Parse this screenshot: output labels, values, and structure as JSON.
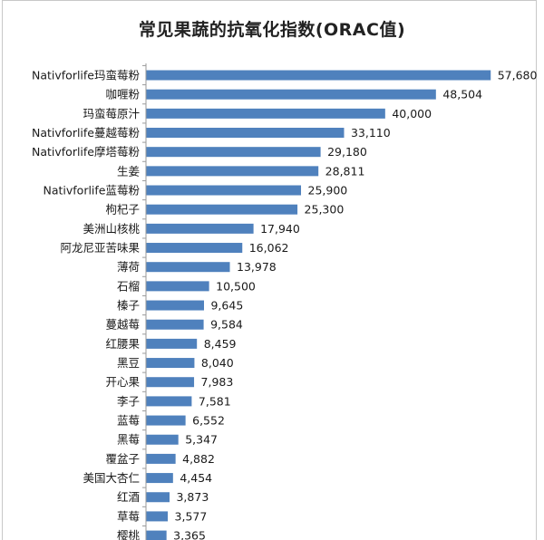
{
  "chart_data": {
    "type": "bar",
    "orientation": "horizontal",
    "title": "常见果蔬的抗氧化指数(ORAC值)",
    "categories": [
      "Nativforlife玛蛮莓粉",
      "咖喱粉",
      "玛蛮莓原汁",
      "Nativforlife蔓越莓粉",
      "Nativforlife摩塔莓粉",
      "生姜",
      "Nativforlife蓝莓粉",
      "枸杞子",
      "美洲山核桃",
      "阿龙尼亚苦味果",
      "薄荷",
      "石榴",
      "榛子",
      "蔓越莓",
      "红腰果",
      "黑豆",
      "开心果",
      "李子",
      "蓝莓",
      "黑莓",
      "覆盆子",
      "美国大杏仁",
      "红酒",
      "草莓",
      "樱桃"
    ],
    "values": [
      57680,
      48504,
      40000,
      33110,
      29180,
      28811,
      25900,
      25300,
      17940,
      16062,
      13978,
      10500,
      9645,
      9584,
      8459,
      8040,
      7983,
      7581,
      6552,
      5347,
      4882,
      4454,
      3873,
      3577,
      3365
    ],
    "value_labels": [
      "57,680",
      "48,504",
      "40,000",
      "33,110",
      "29,180",
      "28,811",
      "25,900",
      "25,300",
      "17,940",
      "16,062",
      "13,978",
      "10,500",
      "9,645",
      "9,584",
      "8,459",
      "8,040",
      "7,983",
      "7,581",
      "6,552",
      "5,347",
      "4,882",
      "4,454",
      "3,873",
      "3,577",
      "3,365"
    ],
    "xlim": [
      0,
      60000
    ],
    "grid": false,
    "legend": "none",
    "bar_color": "#4f81bd"
  }
}
